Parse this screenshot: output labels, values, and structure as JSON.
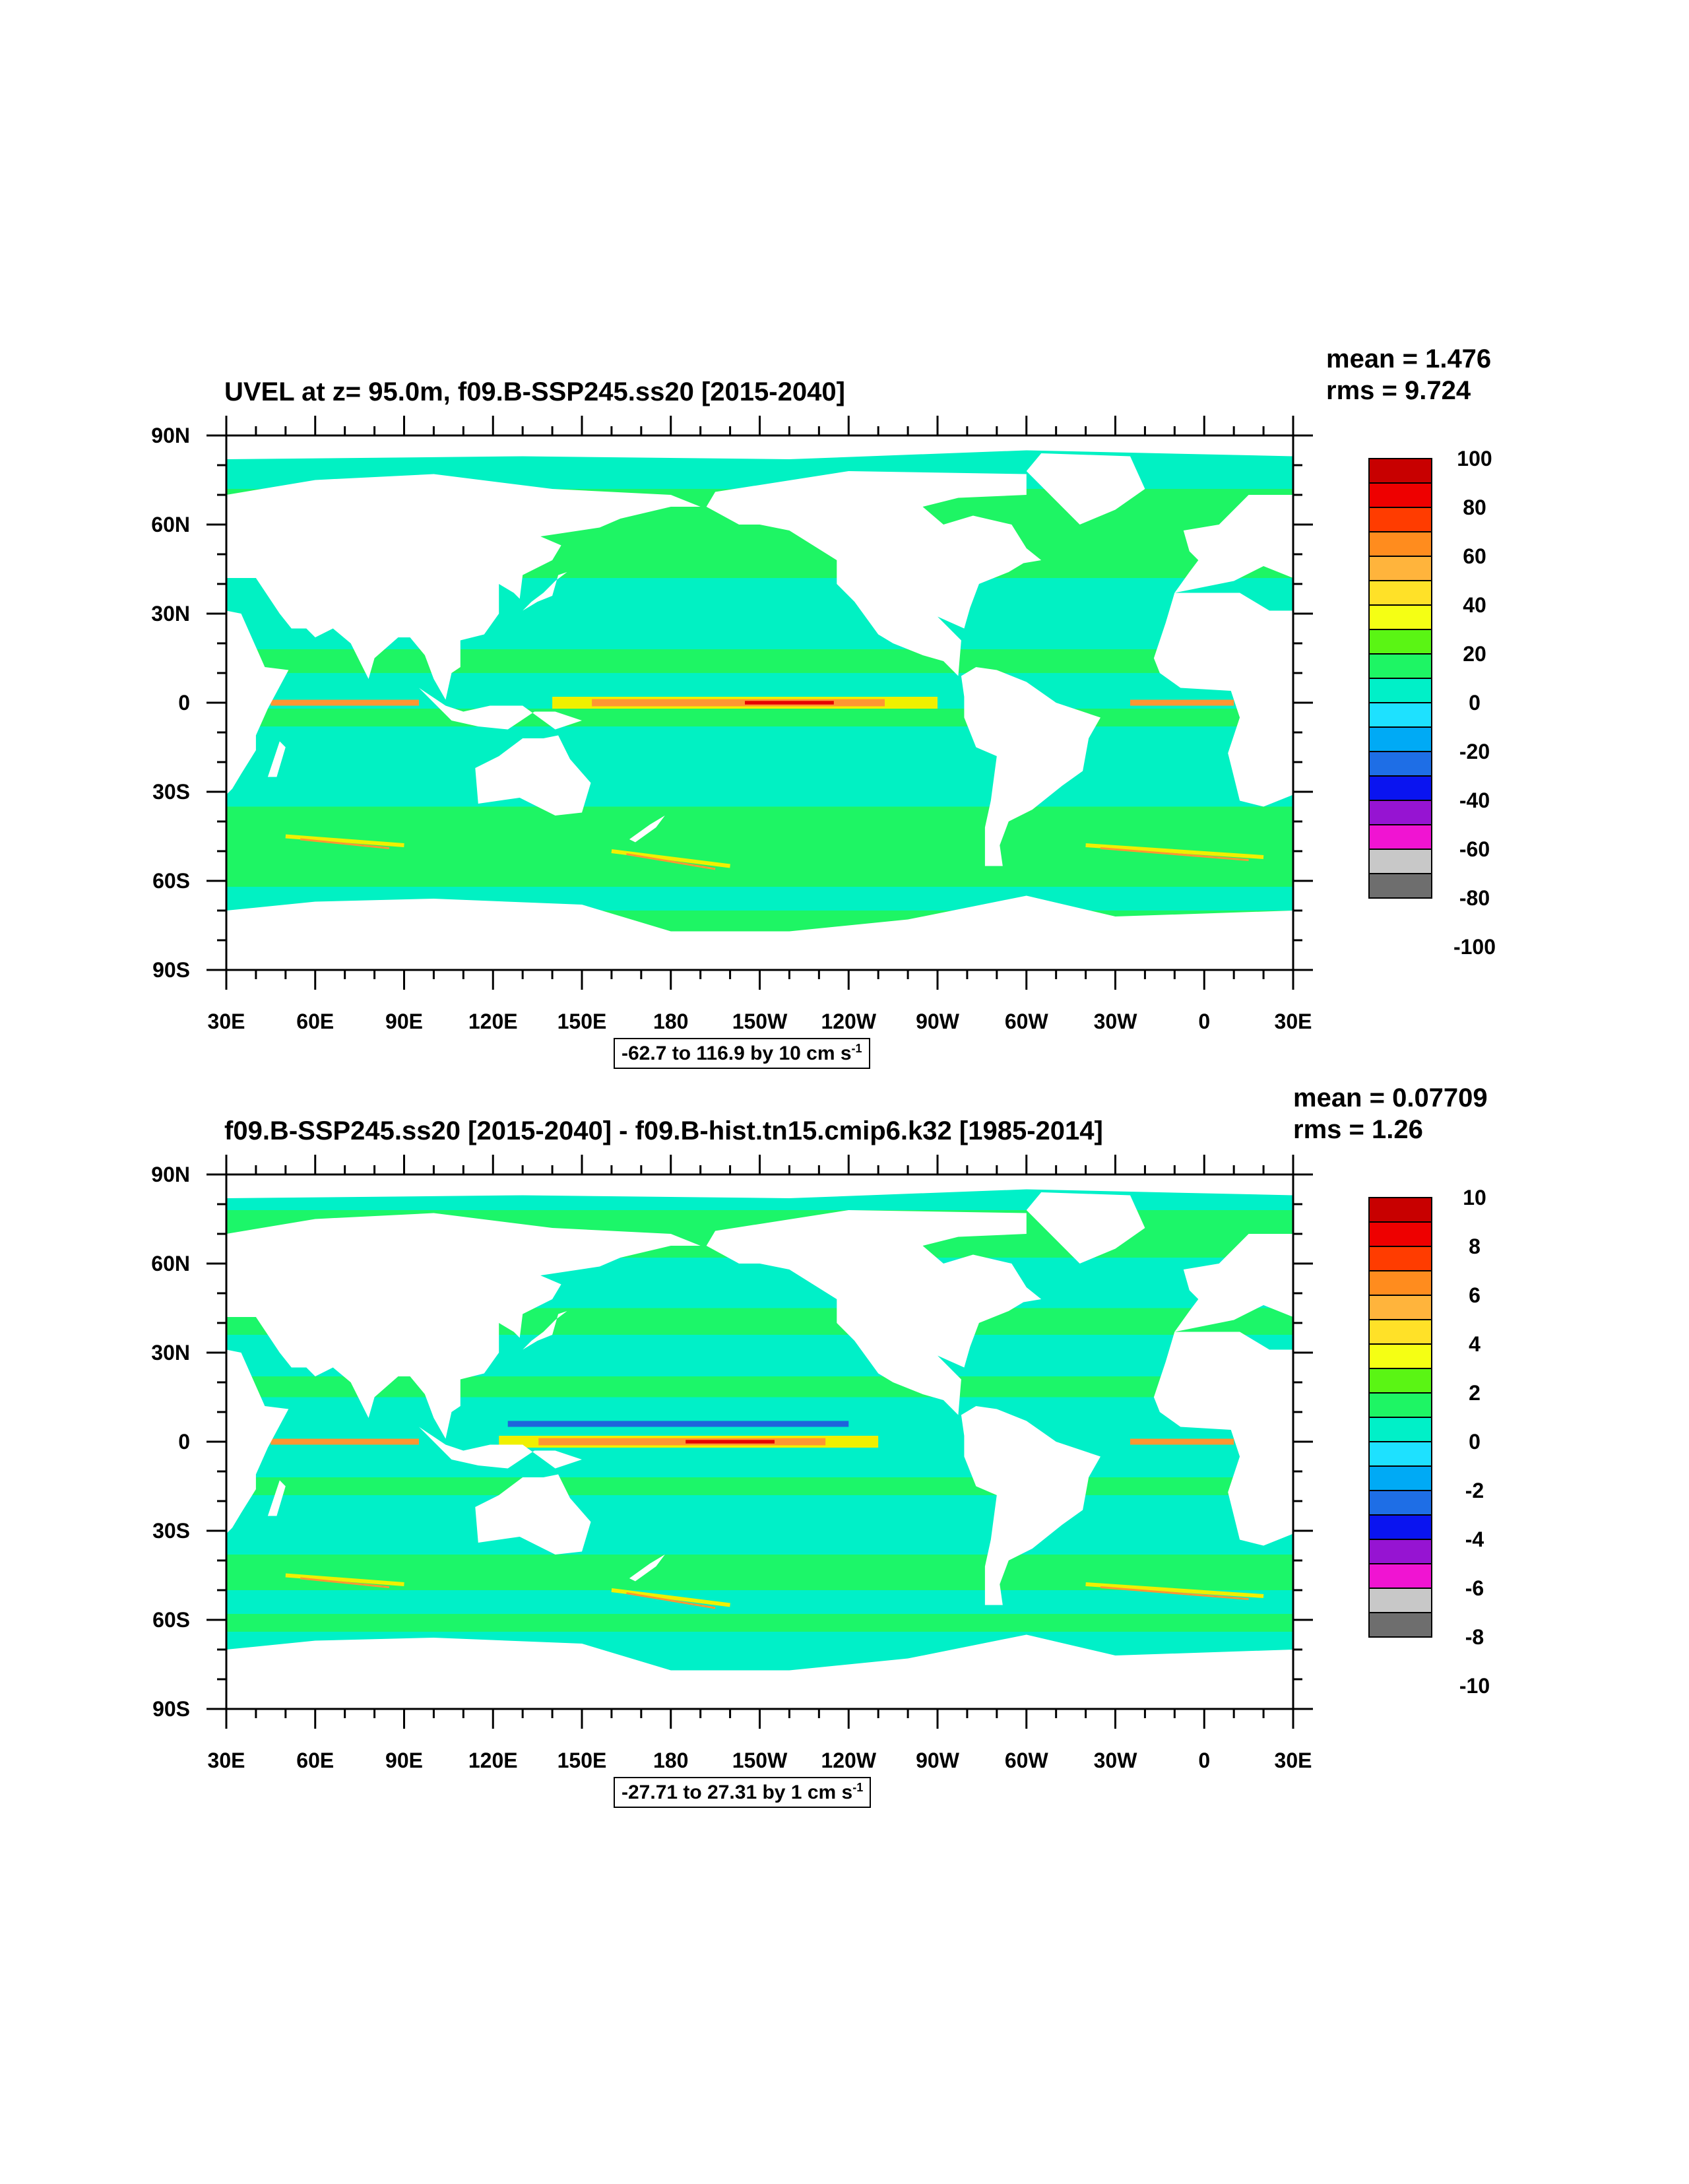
{
  "panels": [
    {
      "id": "top",
      "title": "UVEL at z=  95.0m, f09.B-SSP245.ss20 [2015-2040]",
      "mean_text": "mean = 1.476",
      "rms_text": "rms = 9.724",
      "contour_info": "-62.7 to 116.9 by 10 cm s",
      "contour_info_sup": "-1",
      "colorbar_labels": [
        "100",
        "80",
        "60",
        "40",
        "20",
        "0",
        "-20",
        "-40",
        "-60",
        "-80",
        "-100"
      ]
    },
    {
      "id": "bottom",
      "title": "f09.B-SSP245.ss20 [2015-2040] - f09.B-hist.tn15.cmip6.k32 [1985-2014]",
      "mean_text": "mean = 0.07709",
      "rms_text": "rms = 1.26",
      "contour_info": "-27.71 to 27.31 by 1 cm s",
      "contour_info_sup": "-1",
      "colorbar_labels": [
        "10",
        "8",
        "6",
        "4",
        "2",
        "0",
        "-2",
        "-4",
        "-6",
        "-8",
        "-10"
      ]
    }
  ],
  "lat_labels": [
    "90N",
    "60N",
    "30N",
    "0",
    "30S",
    "60S",
    "90S"
  ],
  "lon_labels": [
    "30E",
    "60E",
    "90E",
    "120E",
    "150E",
    "180",
    "150W",
    "120W",
    "90W",
    "60W",
    "30W",
    "0",
    "30E"
  ],
  "colors": {
    "land": "#ffffff",
    "ocean_main_green": "#1ef564",
    "ocean_teal": "#00f0c8",
    "jet_yellow": "#f0f000",
    "jet_orange": "#ff9632",
    "jet_red": "#e60000",
    "jet_blue": "#1e64dc",
    "colorbar": [
      "#c80000",
      "#ee0000",
      "#ff3c00",
      "#ff8c1e",
      "#ffb43c",
      "#ffe128",
      "#f5ff14",
      "#5af514",
      "#1ef564",
      "#00f0c8",
      "#1ee1ff",
      "#00aaf5",
      "#1e6ee6",
      "#0a14f0",
      "#9614d2",
      "#f014d2",
      "#c8c8c8",
      "#6e6e6e"
    ]
  }
}
